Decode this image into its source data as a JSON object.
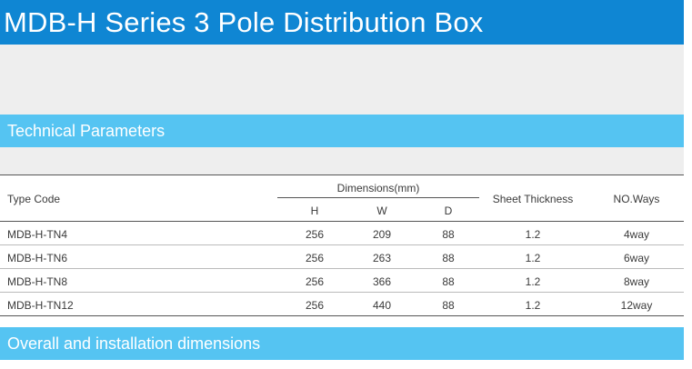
{
  "title": "MDB-H Series 3 Pole Distribution Box",
  "sections": {
    "technical": "Technical Parameters",
    "overall": "Overall and installation dimensions"
  },
  "table": {
    "headers": {
      "type_code": "Type Code",
      "dimensions": "Dimensions(mm)",
      "h": "H",
      "w": "W",
      "d": "D",
      "sheet_thickness": "Sheet Thickness",
      "no_ways": "NO.Ways"
    },
    "rows": [
      {
        "type": "MDB-H-TN4",
        "h": "256",
        "w": "209",
        "d": "88",
        "thickness": "1.2",
        "ways": "4way"
      },
      {
        "type": "MDB-H-TN6",
        "h": "256",
        "w": "263",
        "d": "88",
        "thickness": "1.2",
        "ways": "6way"
      },
      {
        "type": "MDB-H-TN8",
        "h": "256",
        "w": "366",
        "d": "88",
        "thickness": "1.2",
        "ways": "8way"
      },
      {
        "type": "MDB-H-TN12",
        "h": "256",
        "w": "440",
        "d": "88",
        "thickness": "1.2",
        "ways": "12way"
      }
    ]
  }
}
